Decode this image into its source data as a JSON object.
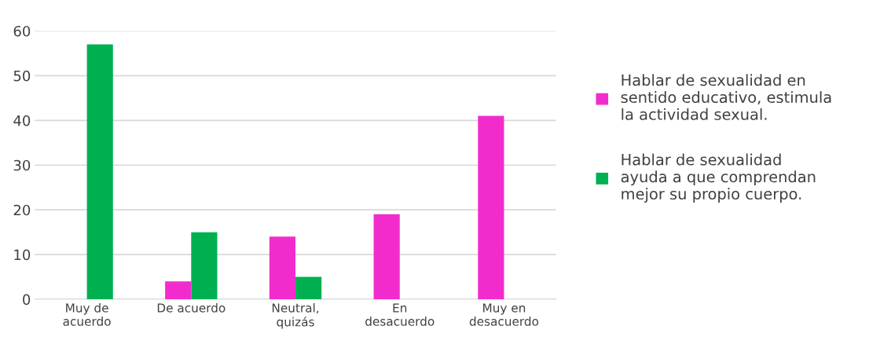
{
  "chart_data": {
    "type": "bar",
    "categories": [
      "Muy de\nacuerdo",
      "De acuerdo",
      "Neutral,\nquizás",
      "En\ndesacuerdo",
      "Muy en\ndesacuerdo"
    ],
    "series": [
      {
        "name": "Hablar de sexualidad en\nsentido educativo, estimula\nla actividad sexual.",
        "color": "#f22ccc",
        "values": [
          0,
          4,
          14,
          19,
          41
        ]
      },
      {
        "name": "Hablar de sexualidad\nayuda a que comprendan\nmejor su propio cuerpo.",
        "color": "#00b050",
        "values": [
          57,
          15,
          5,
          0,
          0
        ]
      }
    ],
    "ylim": [
      0,
      60
    ],
    "yticks": [
      0,
      10,
      20,
      30,
      40,
      50,
      60
    ],
    "grid": "y",
    "legend": "right"
  }
}
